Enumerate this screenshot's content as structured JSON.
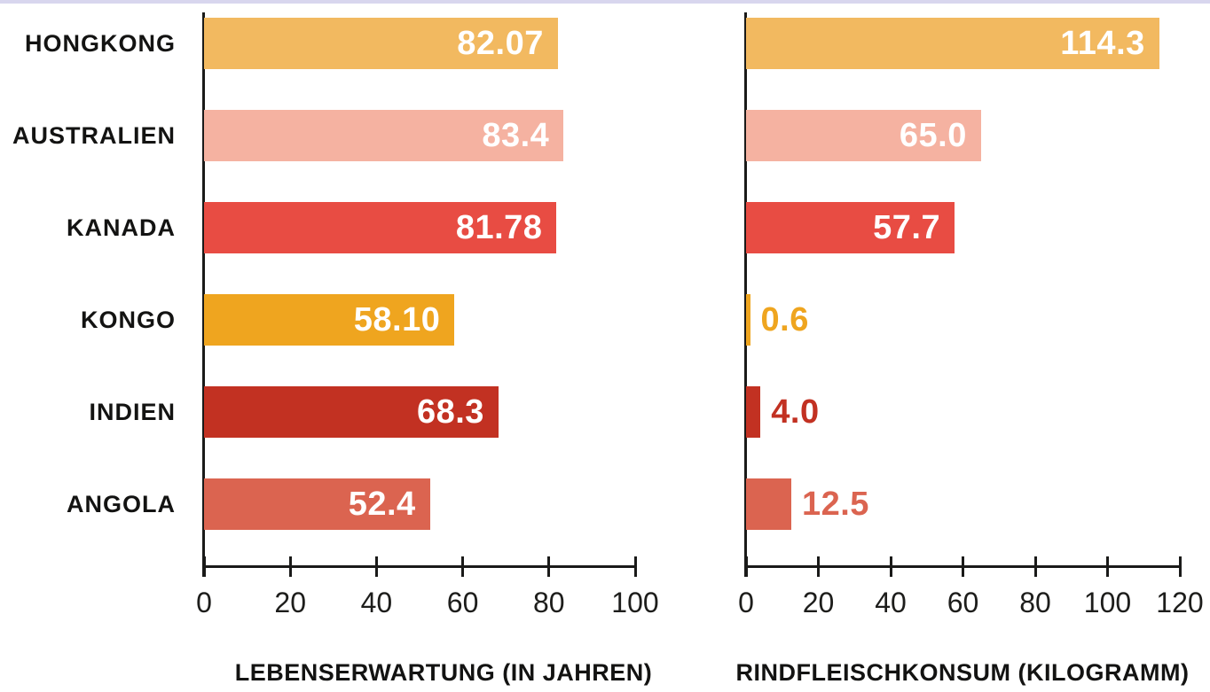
{
  "page": {
    "background": "#FFFFFF",
    "top_strip_color": "#D8D6EE"
  },
  "chart_data": [
    {
      "type": "bar",
      "orientation": "horizontal",
      "title": "LEBENSERWARTUNG (IN JAHREN)",
      "categories": [
        "HONGKONG",
        "AUSTRALIEN",
        "KANADA",
        "KONGO",
        "INDIEN",
        "ANGOLA"
      ],
      "values": [
        82.07,
        83.4,
        81.78,
        58.1,
        68.3,
        52.4
      ],
      "value_labels": [
        "82.07",
        "83.4",
        "81.78",
        "58.10",
        "68.3",
        "52.4"
      ],
      "value_label_placement": [
        "inside",
        "inside",
        "inside",
        "inside",
        "inside",
        "inside"
      ],
      "value_label_color_inside": "#FFFFFF",
      "bar_colors": [
        "#F2B960",
        "#F5B2A1",
        "#E84C43",
        "#EFA51F",
        "#C23122",
        "#DB6450"
      ],
      "xlim": [
        0,
        100
      ],
      "ticks": [
        0,
        20,
        40,
        60,
        80,
        100
      ],
      "grid": "off",
      "legend": "none",
      "axis_color": "#1A1A19"
    },
    {
      "type": "bar",
      "orientation": "horizontal",
      "title": "RINDFLEISCHKONSUM (KILOGRAMM)",
      "categories": [
        "HONGKONG",
        "AUSTRALIEN",
        "KANADA",
        "KONGO",
        "INDIEN",
        "ANGOLA"
      ],
      "values": [
        114.3,
        65.0,
        57.7,
        0.6,
        4.0,
        12.5
      ],
      "value_labels": [
        "114.3",
        "65.0",
        "57.7",
        "0.6",
        "4.0",
        "12.5"
      ],
      "value_label_placement": [
        "inside",
        "inside",
        "inside",
        "outside",
        "outside",
        "outside"
      ],
      "value_label_color_inside": "#FFFFFF",
      "bar_colors": [
        "#F2B960",
        "#F5B2A1",
        "#E84C43",
        "#EFA51F",
        "#C23122",
        "#DB6450"
      ],
      "xlim": [
        0,
        120
      ],
      "ticks": [
        0,
        20,
        40,
        60,
        80,
        100,
        120
      ],
      "grid": "off",
      "legend": "none",
      "axis_color": "#1A1A19"
    }
  ]
}
